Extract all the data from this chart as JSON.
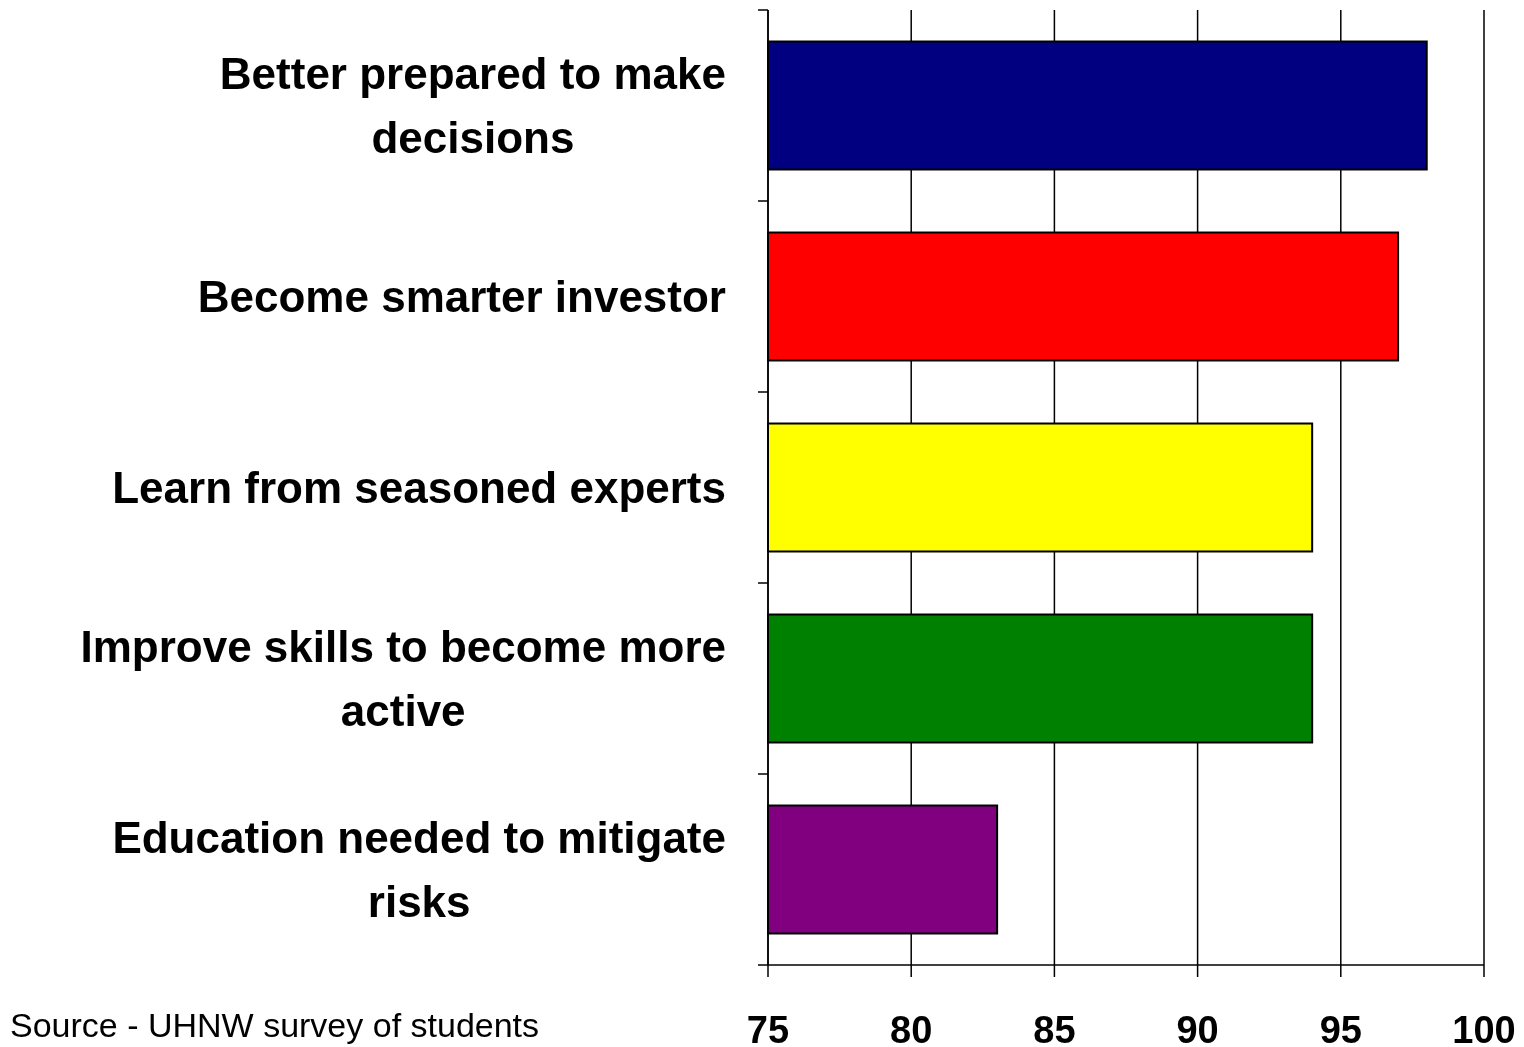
{
  "chart_data": {
    "type": "bar",
    "orientation": "horizontal",
    "categories": [
      "Better prepared to make decisions",
      "Become smarter investor",
      "Learn from seasoned experts",
      "Improve skills to become more active",
      "Education needed to mitigate risks"
    ],
    "values": [
      98,
      97,
      94,
      94,
      83
    ],
    "colors": [
      "#000080",
      "#ff0000",
      "#ffff00",
      "#008000",
      "#800080"
    ],
    "xlim": [
      75,
      100
    ],
    "xticks": [
      75,
      80,
      85,
      90,
      95,
      100
    ],
    "grid": "x",
    "annotations": [
      "Source - UHNW survey of students"
    ]
  }
}
